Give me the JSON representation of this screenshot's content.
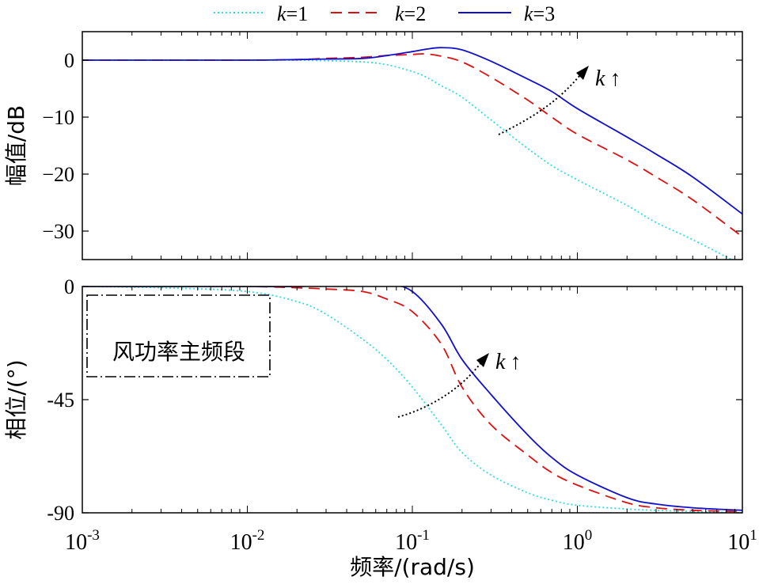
{
  "legend": [
    {
      "k_symbol": "k",
      "label": "=1",
      "color": "#33dddd",
      "dash": "dotted"
    },
    {
      "k_symbol": "k",
      "label": "=2",
      "color": "#dd1111",
      "dash": "dashed"
    },
    {
      "k_symbol": "k",
      "label": "=3",
      "color": "#1111cc",
      "dash": "solid"
    }
  ],
  "xlabel": "频率/(rad/s)",
  "x_ticks": [
    {
      "base": "10",
      "exp": "-3"
    },
    {
      "base": "10",
      "exp": "-2"
    },
    {
      "base": "10",
      "exp": "-1"
    },
    {
      "base": "10",
      "exp": "0"
    },
    {
      "base": "10",
      "exp": "1"
    }
  ],
  "mag_annotation": {
    "k": "k",
    "arrow": "↑"
  },
  "phase_annotation": {
    "k": "k",
    "arrow": "↑"
  },
  "box_label": "风功率主频段",
  "chart_data": [
    {
      "type": "line",
      "name": "magnitude",
      "ylabel": "幅值/dB",
      "xscale": "log",
      "xlim": [
        0.001,
        10
      ],
      "ylim": [
        -35,
        5
      ],
      "yticks": [
        "0",
        "−10",
        "−20",
        "−30"
      ],
      "ytick_values": [
        0,
        -10,
        -20,
        -30
      ],
      "x": [
        0.001,
        0.003,
        0.01,
        0.02,
        0.03,
        0.05,
        0.07,
        0.1,
        0.12,
        0.15,
        0.2,
        0.3,
        0.5,
        0.7,
        1,
        2,
        3,
        5,
        10
      ],
      "series": [
        {
          "name": "k=1",
          "values": [
            0,
            0,
            0,
            0,
            -0.1,
            -0.3,
            -0.8,
            -2.0,
            -2.9,
            -4.5,
            -6.5,
            -10.5,
            -15.5,
            -18.5,
            -21.0,
            -25.5,
            -28.5,
            -31.5,
            -36.0
          ]
        },
        {
          "name": "k=2",
          "values": [
            0,
            0,
            0,
            0.1,
            0.3,
            0.5,
            0.8,
            1.0,
            1.1,
            0.7,
            -0.3,
            -3.0,
            -7.0,
            -10.0,
            -13.0,
            -17.5,
            -20.5,
            -24.5,
            -31.0
          ]
        },
        {
          "name": "k=3",
          "values": [
            0,
            0,
            0,
            0.1,
            0.2,
            0.3,
            0.8,
            1.5,
            1.9,
            2.2,
            1.8,
            -0.2,
            -3.3,
            -5.5,
            -8.5,
            -13.5,
            -16.5,
            -20.5,
            -27.0
          ]
        }
      ]
    },
    {
      "type": "line",
      "name": "phase",
      "ylabel": "相位/(°)",
      "xscale": "log",
      "xlim": [
        0.001,
        10
      ],
      "ylim": [
        -90,
        0
      ],
      "yticks": [
        "0",
        "-45",
        "-90"
      ],
      "ytick_values": [
        0,
        -45,
        -90
      ],
      "x": [
        0.001,
        0.003,
        0.01,
        0.02,
        0.03,
        0.05,
        0.07,
        0.1,
        0.15,
        0.2,
        0.3,
        0.5,
        0.7,
        1,
        2,
        3,
        5,
        10
      ],
      "series": [
        {
          "name": "k=1",
          "values": [
            0,
            -0.5,
            -2.0,
            -6.0,
            -11.0,
            -21.0,
            -29.0,
            -40.0,
            -55.0,
            -66.0,
            -75.0,
            -82.0,
            -85.0,
            -87.0,
            -88.5,
            -89.0,
            -89.5,
            -90.0
          ]
        },
        {
          "name": "k=2",
          "values": [
            0,
            0,
            0,
            -0.5,
            -1.0,
            -2.0,
            -5.0,
            -10.0,
            -23.0,
            -40.0,
            -55.0,
            -67.0,
            -74.0,
            -79.0,
            -86.0,
            -88.0,
            -89.0,
            -89.5
          ]
        },
        {
          "name": "k=3",
          "values": [
            0,
            0,
            0,
            0,
            0.5,
            0.8,
            0.9,
            -2.0,
            -15.0,
            -29.0,
            -43.0,
            -59.0,
            -68.0,
            -75.0,
            -84.0,
            -86.5,
            -88.0,
            -89.0
          ]
        }
      ]
    }
  ]
}
